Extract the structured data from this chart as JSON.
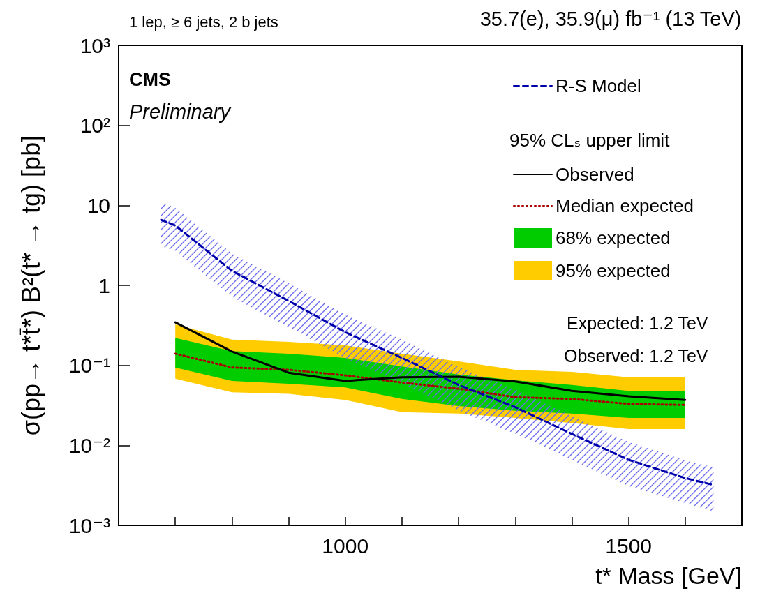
{
  "chart_data": {
    "type": "line",
    "title": "35.7(e), 35.9(μ) fb⁻¹ (13 TeV)",
    "subtitle": "1 lep, ≥ 6 jets, 2 b jets",
    "xlabel": "t* Mass [GeV]",
    "ylabel": "σ(pp→ t*t̄*) B²(t* → tg) [pb]",
    "legend_title": "95% CLₛ upper limit",
    "annotations": [
      "CMS",
      "Preliminary",
      "Expected: 1.2 TeV",
      "Observed: 1.2 TeV"
    ],
    "x": [
      700,
      800,
      900,
      1000,
      1100,
      1200,
      1300,
      1400,
      1500,
      1600
    ],
    "series": [
      {
        "name": "95% expected",
        "type": "line",
        "color": "#ffcc00",
        "values": [
          null,
          null,
          null,
          null,
          null,
          null,
          null,
          null,
          null,
          null
        ],
        "upper": [
          0.325,
          0.21,
          0.197,
          0.178,
          0.14,
          0.112,
          0.088,
          0.083,
          0.071,
          0.071
        ],
        "lower": [
          0.068,
          0.046,
          0.044,
          0.037,
          0.026,
          0.025,
          0.022,
          0.019,
          0.016,
          0.016
        ]
      },
      {
        "name": "68% expected",
        "type": "line",
        "color": "#00cc00",
        "values": [
          null,
          null,
          null,
          null,
          null,
          null,
          null,
          null,
          null,
          null
        ],
        "upper": [
          0.22,
          0.151,
          0.14,
          0.124,
          0.097,
          0.077,
          0.065,
          0.057,
          0.048,
          0.048
        ],
        "lower": [
          0.094,
          0.064,
          0.059,
          0.053,
          0.038,
          0.031,
          0.027,
          0.025,
          0.022,
          0.022
        ]
      },
      {
        "name": "Median expected",
        "type": "line",
        "color": "#aa0000",
        "line_style": "dotted",
        "values": [
          0.14,
          0.094,
          0.088,
          0.075,
          0.061,
          0.051,
          0.04,
          0.038,
          0.033,
          0.032
        ]
      },
      {
        "name": "Observed",
        "type": "line",
        "color": "#000000",
        "line_style": "solid",
        "values": [
          0.345,
          0.149,
          0.081,
          0.064,
          0.071,
          0.072,
          0.063,
          0.048,
          0.041,
          0.037
        ]
      },
      {
        "name": "R-S Model",
        "type": "line",
        "color": "#0000aa",
        "line_style": "dashed",
        "x": [
          675,
          700,
          800,
          900,
          1000,
          1100,
          1200,
          1300,
          1400,
          1500,
          1600,
          1650
        ],
        "values": [
          6.6,
          5.6,
          1.52,
          0.64,
          0.26,
          0.124,
          0.057,
          0.03,
          0.0139,
          0.0066,
          0.0039,
          0.0032
        ],
        "upper": [
          11,
          9.3,
          2.5,
          1.06,
          0.43,
          0.21,
          0.095,
          0.05,
          0.023,
          0.011,
          0.0065,
          0.0053
        ],
        "lower": [
          3.1,
          2.7,
          0.72,
          0.3,
          0.124,
          0.059,
          0.027,
          0.014,
          0.0066,
          0.0031,
          0.0019,
          0.0015
        ]
      }
    ],
    "xlim": [
      600,
      1700
    ],
    "xticks": [
      {
        "value": 700,
        "label": null
      },
      {
        "value": 800,
        "label": null
      },
      {
        "value": 900,
        "label": null
      },
      1000,
      {
        "value": 1100,
        "label": null
      },
      {
        "value": 1200,
        "label": null
      },
      {
        "value": 1300,
        "label": null
      },
      {
        "value": 1400,
        "label": null
      },
      1500,
      {
        "value": 1600,
        "label": null
      }
    ],
    "ylim": [
      0.001,
      1000
    ],
    "yticks": [
      {
        "value": 0.001,
        "label": "10⁻³"
      },
      {
        "value": 0.01,
        "label": "10⁻²"
      },
      {
        "value": 0.1,
        "label": "10⁻¹"
      },
      1,
      10,
      {
        "value": 100,
        "label": "10²"
      },
      {
        "value": 1000,
        "label": "10³"
      }
    ],
    "log": true,
    "legend": "top right",
    "marker": "none"
  }
}
